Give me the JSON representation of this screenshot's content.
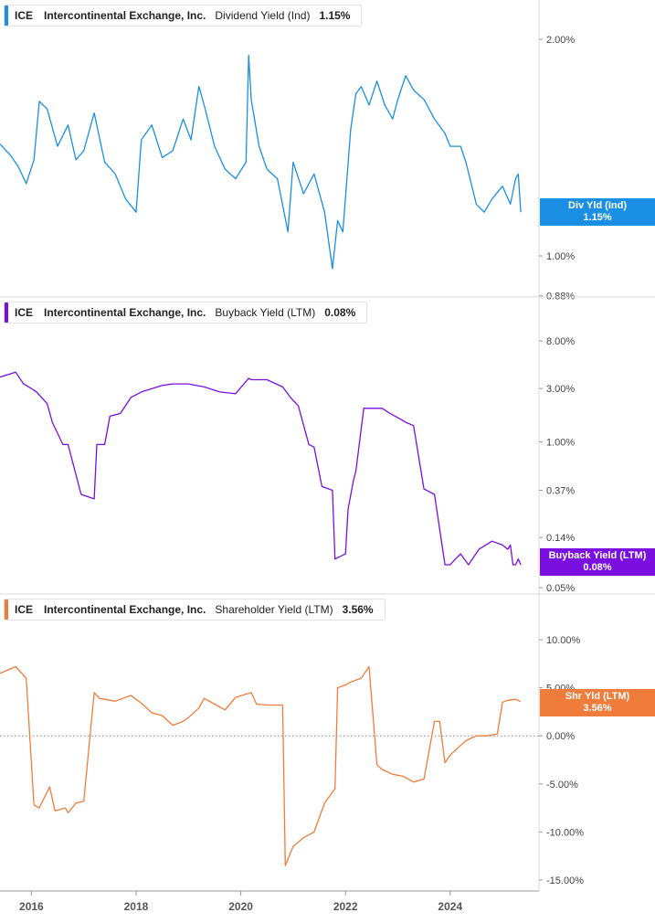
{
  "panels": [
    {
      "ticker": "ICE",
      "company": "Intercontinental Exchange, Inc.",
      "metric": "Dividend Yield (Ind)",
      "value": "1.15%",
      "tag_label": "Div Yld (Ind)",
      "tag_value": "1.15%",
      "color": "#1a8fe3",
      "scale": "log",
      "y_ticks": [
        "2.00%",
        "1.00%",
        "0.88%"
      ],
      "tick_values": [
        2.0,
        1.0,
        0.88
      ]
    },
    {
      "ticker": "ICE",
      "company": "Intercontinental Exchange, Inc.",
      "metric": "Buyback Yield (LTM)",
      "value": "0.08%",
      "tag_label": "Buyback Yield (LTM)",
      "tag_value": "0.08%",
      "color": "#7b0fe0",
      "scale": "log",
      "y_ticks": [
        "8.00%",
        "3.00%",
        "1.00%",
        "0.37%",
        "0.14%",
        "0.05%"
      ],
      "tick_values": [
        8.0,
        3.0,
        1.0,
        0.37,
        0.14,
        0.05
      ]
    },
    {
      "ticker": "ICE",
      "company": "Intercontinental Exchange, Inc.",
      "metric": "Shareholder Yield (LTM)",
      "value": "3.56%",
      "tag_label": "Shr Yld (LTM)",
      "tag_value": "3.56%",
      "color": "#f07c3c",
      "scale": "linear",
      "y_ticks": [
        "10.00%",
        "5.00%",
        "0.00%",
        "-5.00%",
        "-10.00%",
        "-15.00%"
      ],
      "tick_values": [
        10,
        5,
        0,
        -5,
        -10,
        -15
      ],
      "zero_line": true
    }
  ],
  "x_axis": {
    "ticks": [
      "2016",
      "2018",
      "2020",
      "2022",
      "2024"
    ],
    "tick_years": [
      2016,
      2018,
      2020,
      2022,
      2024
    ],
    "range": [
      2015.4,
      2025.4
    ]
  },
  "chart_data": [
    {
      "type": "line",
      "title": "ICE Intercontinental Exchange, Inc. Dividend Yield (Ind) 1.15%",
      "scale": "log",
      "series": [
        {
          "name": "Dividend Yield (Ind)",
          "x": [
            2015.4,
            2015.6,
            2015.75,
            2015.9,
            2016.05,
            2016.15,
            2016.3,
            2016.5,
            2016.7,
            2016.85,
            2017.0,
            2017.2,
            2017.4,
            2017.6,
            2017.8,
            2018.0,
            2018.1,
            2018.3,
            2018.5,
            2018.7,
            2018.9,
            2019.05,
            2019.2,
            2019.3,
            2019.5,
            2019.7,
            2019.9,
            2020.1,
            2020.15,
            2020.2,
            2020.35,
            2020.5,
            2020.7,
            2020.9,
            2021.0,
            2021.2,
            2021.4,
            2021.6,
            2021.75,
            2021.85,
            2021.95,
            2022.1,
            2022.2,
            2022.3,
            2022.45,
            2022.6,
            2022.75,
            2022.9,
            2023.0,
            2023.15,
            2023.3,
            2023.5,
            2023.7,
            2023.9,
            2024.0,
            2024.2,
            2024.3,
            2024.5,
            2024.65,
            2024.8,
            2025.0,
            2025.15,
            2025.25,
            2025.3,
            2025.35
          ],
          "values": [
            1.43,
            1.38,
            1.33,
            1.26,
            1.36,
            1.64,
            1.6,
            1.42,
            1.52,
            1.36,
            1.4,
            1.58,
            1.35,
            1.3,
            1.2,
            1.15,
            1.45,
            1.52,
            1.37,
            1.4,
            1.55,
            1.45,
            1.72,
            1.62,
            1.42,
            1.32,
            1.28,
            1.35,
            1.9,
            1.65,
            1.42,
            1.32,
            1.28,
            1.08,
            1.35,
            1.22,
            1.3,
            1.15,
            0.96,
            1.12,
            1.08,
            1.5,
            1.68,
            1.72,
            1.62,
            1.75,
            1.62,
            1.55,
            1.65,
            1.78,
            1.7,
            1.65,
            1.55,
            1.48,
            1.42,
            1.42,
            1.35,
            1.18,
            1.15,
            1.2,
            1.25,
            1.18,
            1.28,
            1.3,
            1.15
          ]
        }
      ],
      "y_ticks": [
        "2.00%",
        "1.00%",
        "0.88%"
      ],
      "x_ticks": [
        "2016",
        "2018",
        "2020",
        "2022",
        "2024"
      ]
    },
    {
      "type": "line",
      "title": "ICE Intercontinental Exchange, Inc. Buyback Yield (LTM) 0.08%",
      "scale": "log",
      "series": [
        {
          "name": "Buyback Yield (LTM)",
          "x": [
            2015.4,
            2015.7,
            2015.85,
            2016.0,
            2016.1,
            2016.3,
            2016.4,
            2016.6,
            2016.7,
            2016.95,
            2017.2,
            2017.25,
            2017.4,
            2017.5,
            2017.7,
            2017.9,
            2018.1,
            2018.5,
            2018.7,
            2019.0,
            2019.3,
            2019.6,
            2019.9,
            2020.15,
            2020.2,
            2020.5,
            2020.8,
            2020.95,
            2021.1,
            2021.3,
            2021.4,
            2021.55,
            2021.75,
            2021.8,
            2022.0,
            2022.05,
            2022.15,
            2022.2,
            2022.35,
            2022.7,
            2022.85,
            2023.05,
            2023.15,
            2023.3,
            2023.5,
            2023.7,
            2023.9,
            2024.0,
            2024.1,
            2024.2,
            2024.35,
            2024.55,
            2024.8,
            2025.0,
            2025.1,
            2025.15,
            2025.2,
            2025.25,
            2025.3,
            2025.35
          ],
          "values": [
            3.8,
            4.2,
            3.3,
            3.0,
            2.8,
            2.2,
            1.5,
            0.95,
            0.95,
            0.34,
            0.31,
            0.95,
            0.95,
            1.7,
            1.8,
            2.5,
            2.8,
            3.2,
            3.3,
            3.3,
            3.1,
            2.8,
            2.7,
            3.7,
            3.6,
            3.6,
            3.1,
            2.5,
            2.1,
            0.95,
            0.9,
            0.4,
            0.37,
            0.09,
            0.1,
            0.25,
            0.45,
            0.55,
            2.0,
            2.0,
            1.8,
            1.6,
            1.5,
            1.4,
            0.38,
            0.34,
            0.08,
            0.08,
            0.09,
            0.1,
            0.08,
            0.11,
            0.13,
            0.12,
            0.11,
            0.12,
            0.08,
            0.08,
            0.09,
            0.08
          ]
        }
      ],
      "y_ticks": [
        "8.00%",
        "3.00%",
        "1.00%",
        "0.37%",
        "0.14%",
        "0.05%"
      ],
      "x_ticks": [
        "2016",
        "2018",
        "2020",
        "2022",
        "2024"
      ]
    },
    {
      "type": "line",
      "title": "ICE Intercontinental Exchange, Inc. Shareholder Yield (LTM) 3.56%",
      "scale": "linear",
      "ylim": [
        -15,
        10
      ],
      "series": [
        {
          "name": "Shareholder Yield (LTM)",
          "x": [
            2015.4,
            2015.7,
            2015.9,
            2016.05,
            2016.15,
            2016.35,
            2016.45,
            2016.65,
            2016.7,
            2016.85,
            2017.0,
            2017.2,
            2017.3,
            2017.6,
            2017.9,
            2018.1,
            2018.3,
            2018.5,
            2018.7,
            2018.9,
            2019.0,
            2019.2,
            2019.3,
            2019.5,
            2019.7,
            2019.9,
            2020.2,
            2020.3,
            2020.5,
            2020.8,
            2020.85,
            2021.0,
            2021.2,
            2021.4,
            2021.6,
            2021.8,
            2021.85,
            2022.0,
            2022.1,
            2022.3,
            2022.45,
            2022.6,
            2022.7,
            2022.9,
            2023.1,
            2023.3,
            2023.5,
            2023.7,
            2023.8,
            2023.9,
            2024.0,
            2024.1,
            2024.2,
            2024.3,
            2024.5,
            2024.7,
            2024.9,
            2025.0,
            2025.1,
            2025.25,
            2025.35
          ],
          "values": [
            6.5,
            7.2,
            6.0,
            -7.2,
            -7.5,
            -5.3,
            -7.8,
            -7.5,
            -8.0,
            -7.0,
            -6.8,
            4.5,
            3.9,
            3.6,
            4.2,
            3.4,
            2.4,
            2.1,
            1.1,
            1.5,
            1.9,
            2.9,
            3.9,
            3.3,
            2.7,
            4.0,
            4.5,
            3.3,
            3.2,
            3.2,
            -13.5,
            -11.5,
            -10.6,
            -10.0,
            -7.0,
            -5.5,
            5.0,
            5.3,
            5.6,
            6.0,
            7.2,
            -3.0,
            -3.5,
            -4.0,
            -4.2,
            -4.8,
            -4.5,
            1.5,
            1.5,
            -2.8,
            -2.0,
            -1.5,
            -1.0,
            -0.5,
            0.0,
            0.0,
            0.2,
            3.5,
            3.7,
            3.8,
            3.56
          ]
        }
      ],
      "y_ticks": [
        "10.00%",
        "5.00%",
        "0.00%",
        "-5.00%",
        "-10.00%",
        "-15.00%"
      ],
      "x_ticks": [
        "2016",
        "2018",
        "2020",
        "2022",
        "2024"
      ]
    }
  ]
}
